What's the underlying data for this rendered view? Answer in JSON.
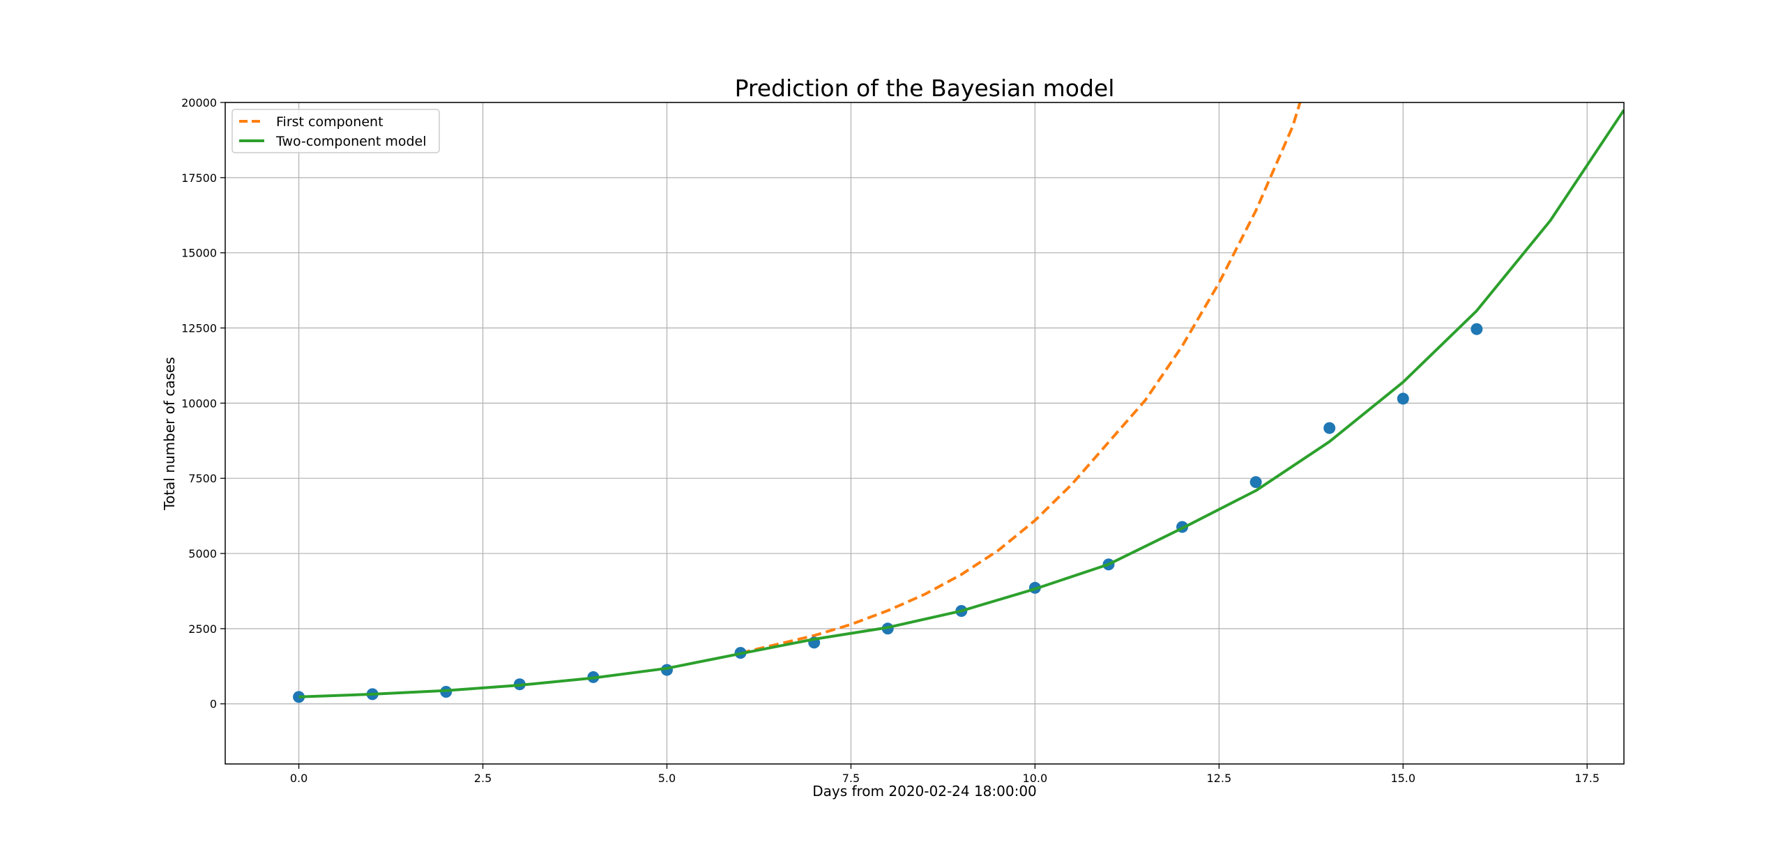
{
  "chart_data": {
    "type": "scatter",
    "title": "Prediction of the Bayesian model",
    "xlabel": "Days from 2020-02-24 18:00:00",
    "ylabel": "Total number of cases",
    "xlim": [
      -1.0,
      18.0
    ],
    "ylim": [
      -2000,
      20000
    ],
    "xticks": [
      0.0,
      2.5,
      5.0,
      7.5,
      10.0,
      12.5,
      15.0,
      17.5
    ],
    "xtick_labels": [
      "0.0",
      "2.5",
      "5.0",
      "7.5",
      "10.0",
      "12.5",
      "15.0",
      "17.5"
    ],
    "yticks": [
      0,
      2500,
      5000,
      7500,
      10000,
      12500,
      15000,
      17500,
      20000
    ],
    "ytick_labels": [
      "0",
      "2500",
      "5000",
      "7500",
      "10000",
      "12500",
      "15000",
      "17500",
      "20000"
    ],
    "grid": true,
    "legend_position": "top-left",
    "series": [
      {
        "kind": "scatter",
        "color": "#1f77b4",
        "x": [
          0,
          1,
          2,
          3,
          4,
          5,
          6,
          7,
          8,
          9,
          10,
          11,
          12,
          13,
          14,
          15,
          16
        ],
        "y": [
          229,
          322,
          400,
          650,
          888,
          1128,
          1694,
          2036,
          2502,
          3089,
          3858,
          4636,
          5883,
          7375,
          9172,
          10149,
          12462
        ]
      },
      {
        "kind": "line",
        "name": "First component",
        "style": "dashed",
        "color": "#ff7f0e",
        "x": [
          6,
          6.5,
          7,
          7.5,
          8,
          8.5,
          9,
          9.5,
          10,
          10.5,
          11,
          11.5,
          12,
          12.5,
          13,
          13.5,
          13.6
        ],
        "y": [
          1690,
          1980,
          2270,
          2640,
          3100,
          3640,
          4300,
          5100,
          6100,
          7300,
          8700,
          10100,
          11900,
          14000,
          16400,
          19200,
          20000
        ]
      },
      {
        "kind": "line",
        "name": "Two-component model",
        "style": "solid",
        "color": "#2ca02c",
        "x": [
          0,
          1,
          2,
          3,
          4,
          5,
          6,
          7,
          8,
          9,
          10,
          11,
          12,
          13,
          14,
          15,
          16,
          17,
          18
        ],
        "y": [
          230,
          320,
          440,
          620,
          860,
          1180,
          1670,
          2150,
          2540,
          3090,
          3820,
          4640,
          5840,
          7090,
          8720,
          10700,
          13070,
          16070,
          19750
        ]
      }
    ]
  }
}
